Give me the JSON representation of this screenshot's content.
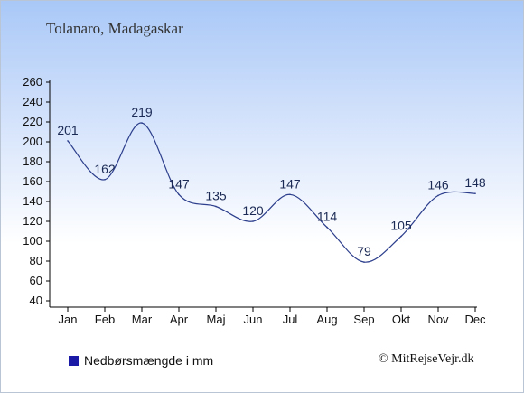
{
  "title": "Tolanaro, Madagaskar",
  "legend": {
    "label": "Nedbørsmængde i mm",
    "color": "#1a1aa6"
  },
  "credit": "© MitRejseVejr.dk",
  "colors": {
    "line": "#2c3e8c",
    "axis": "#000000"
  },
  "chart_data": {
    "type": "line",
    "title": "Tolanaro, Madagaskar",
    "categories": [
      "Jan",
      "Feb",
      "Mar",
      "Apr",
      "Maj",
      "Jun",
      "Jul",
      "Aug",
      "Sep",
      "Okt",
      "Nov",
      "Dec"
    ],
    "series": [
      {
        "name": "Nedbørsmængde i mm",
        "values": [
          201,
          162,
          219,
          147,
          135,
          120,
          147,
          114,
          79,
          105,
          146,
          148
        ]
      }
    ],
    "ylim": [
      40,
      260
    ],
    "yticks": [
      40,
      60,
      80,
      100,
      120,
      140,
      160,
      180,
      200,
      220,
      240,
      260
    ],
    "grid": false,
    "legend_position": "bottom-left"
  }
}
